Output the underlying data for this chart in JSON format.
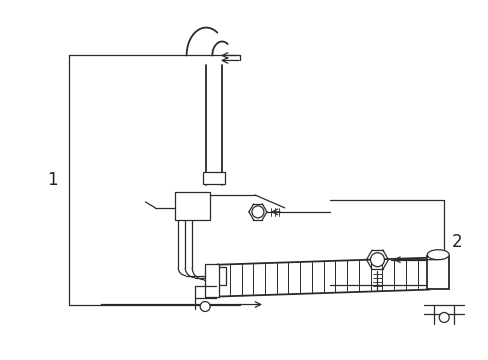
{
  "bg_color": "#ffffff",
  "line_color": "#2a2a2a",
  "label_color": "#222222",
  "figsize": [
    4.89,
    3.6
  ],
  "dpi": 100,
  "part1_label": "1",
  "part2_label": "2",
  "xlim": [
    0,
    489
  ],
  "ylim": [
    0,
    360
  ]
}
